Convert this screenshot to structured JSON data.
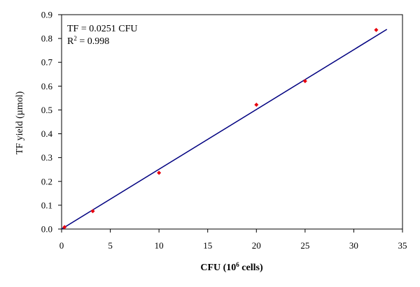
{
  "chart_data": {
    "type": "scatter",
    "xlabel": {
      "prefix": "CFU (10",
      "sup": "6",
      "suffix": " cells)"
    },
    "ylabel": "TF yield (µmol)",
    "xlim": [
      0,
      35
    ],
    "ylim": [
      0,
      0.9
    ],
    "xticks": [
      "0",
      "5",
      "10",
      "15",
      "20",
      "25",
      "30",
      "35"
    ],
    "yticks": [
      "0.0",
      "0.1",
      "0.2",
      "0.3",
      "0.4",
      "0.5",
      "0.6",
      "0.7",
      "0.8",
      "0.9"
    ],
    "grid": false,
    "points": [
      {
        "x": 0.3,
        "y": 0.008
      },
      {
        "x": 3.2,
        "y": 0.075
      },
      {
        "x": 10.0,
        "y": 0.236
      },
      {
        "x": 20.0,
        "y": 0.522
      },
      {
        "x": 25.0,
        "y": 0.621
      },
      {
        "x": 32.3,
        "y": 0.836
      }
    ],
    "fit_line": {
      "slope": 0.0251,
      "x_start": 0,
      "x_end": 33.4
    },
    "annotations": {
      "equation": "TF = 0.0251 CFU",
      "r2_prefix": "R",
      "r2_sup": "2",
      "r2_suffix": " = 0.998"
    },
    "colors": {
      "points": "#e8000d",
      "fit_line": "#000080",
      "axes": "#000000"
    }
  }
}
